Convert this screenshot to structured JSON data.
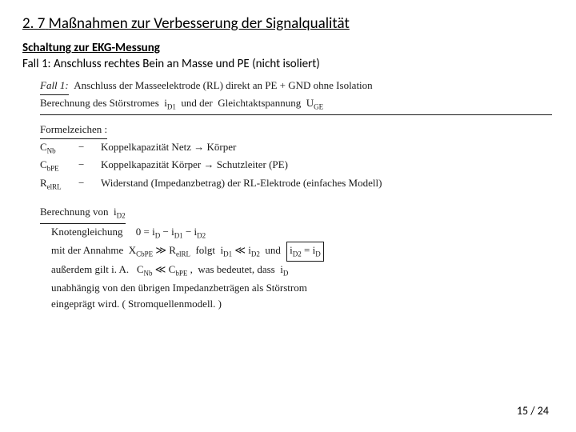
{
  "header": {
    "section_number": "2. 7",
    "section_title": "Maßnahmen zur Verbesserung der Signalqualität",
    "subtitle": "Schaltung zur EKG-Messung",
    "case": "Fall 1: Anschluss rechtes Bein an Masse und PE (nicht isoliert)"
  },
  "handwritten": {
    "line_case": "Fall 1:  Anschluss der Masseelektrode (RL) direkt an PE + GND ohne Isolation",
    "line_calc": "Berechnung des Störstromes  i_D1  und der  Gleichtaktspannung  U_GE",
    "label_formel": "Formelzeichen :",
    "sym1_l": "C_Nb",
    "sym1_r": "Koppelkapazität  Netz → Körper",
    "sym2_l": "C_bPE",
    "sym2_r": "Koppelkapazität  Körper → Schutzleiter (PE)",
    "sym3_l": "R_elRL",
    "sym3_r": "Widerstand (Impedanzbetrag) der RL-Elektrode (einfaches Modell)",
    "label_berech": "Berechnung von  i_D2",
    "eq_node": "Knotengleichung     0 = i_D − i_D1 − i_D2",
    "eq_assume": "mit der Annahme  X_CbPE ≫ R_elRL  folgt  i_D1 ≪ i_D2  und",
    "eq_box": "i_D2 = i_D",
    "eq_also": "außerdem gilt i. A.   C_Nb ≪ C_bPE ,  was bedeutet, dass  i_D",
    "eq_indep": "unabhängig von den übrigen Impedanzbeträgen als Störstrom",
    "eq_last": "eingeprägt wird.  ( Stromquellenmodell. )"
  },
  "footer": {
    "page": "15",
    "sep": " / ",
    "total": "24"
  },
  "style": {
    "bg": "#ffffff",
    "text": "#000000",
    "hand": "#1a1a1a"
  }
}
